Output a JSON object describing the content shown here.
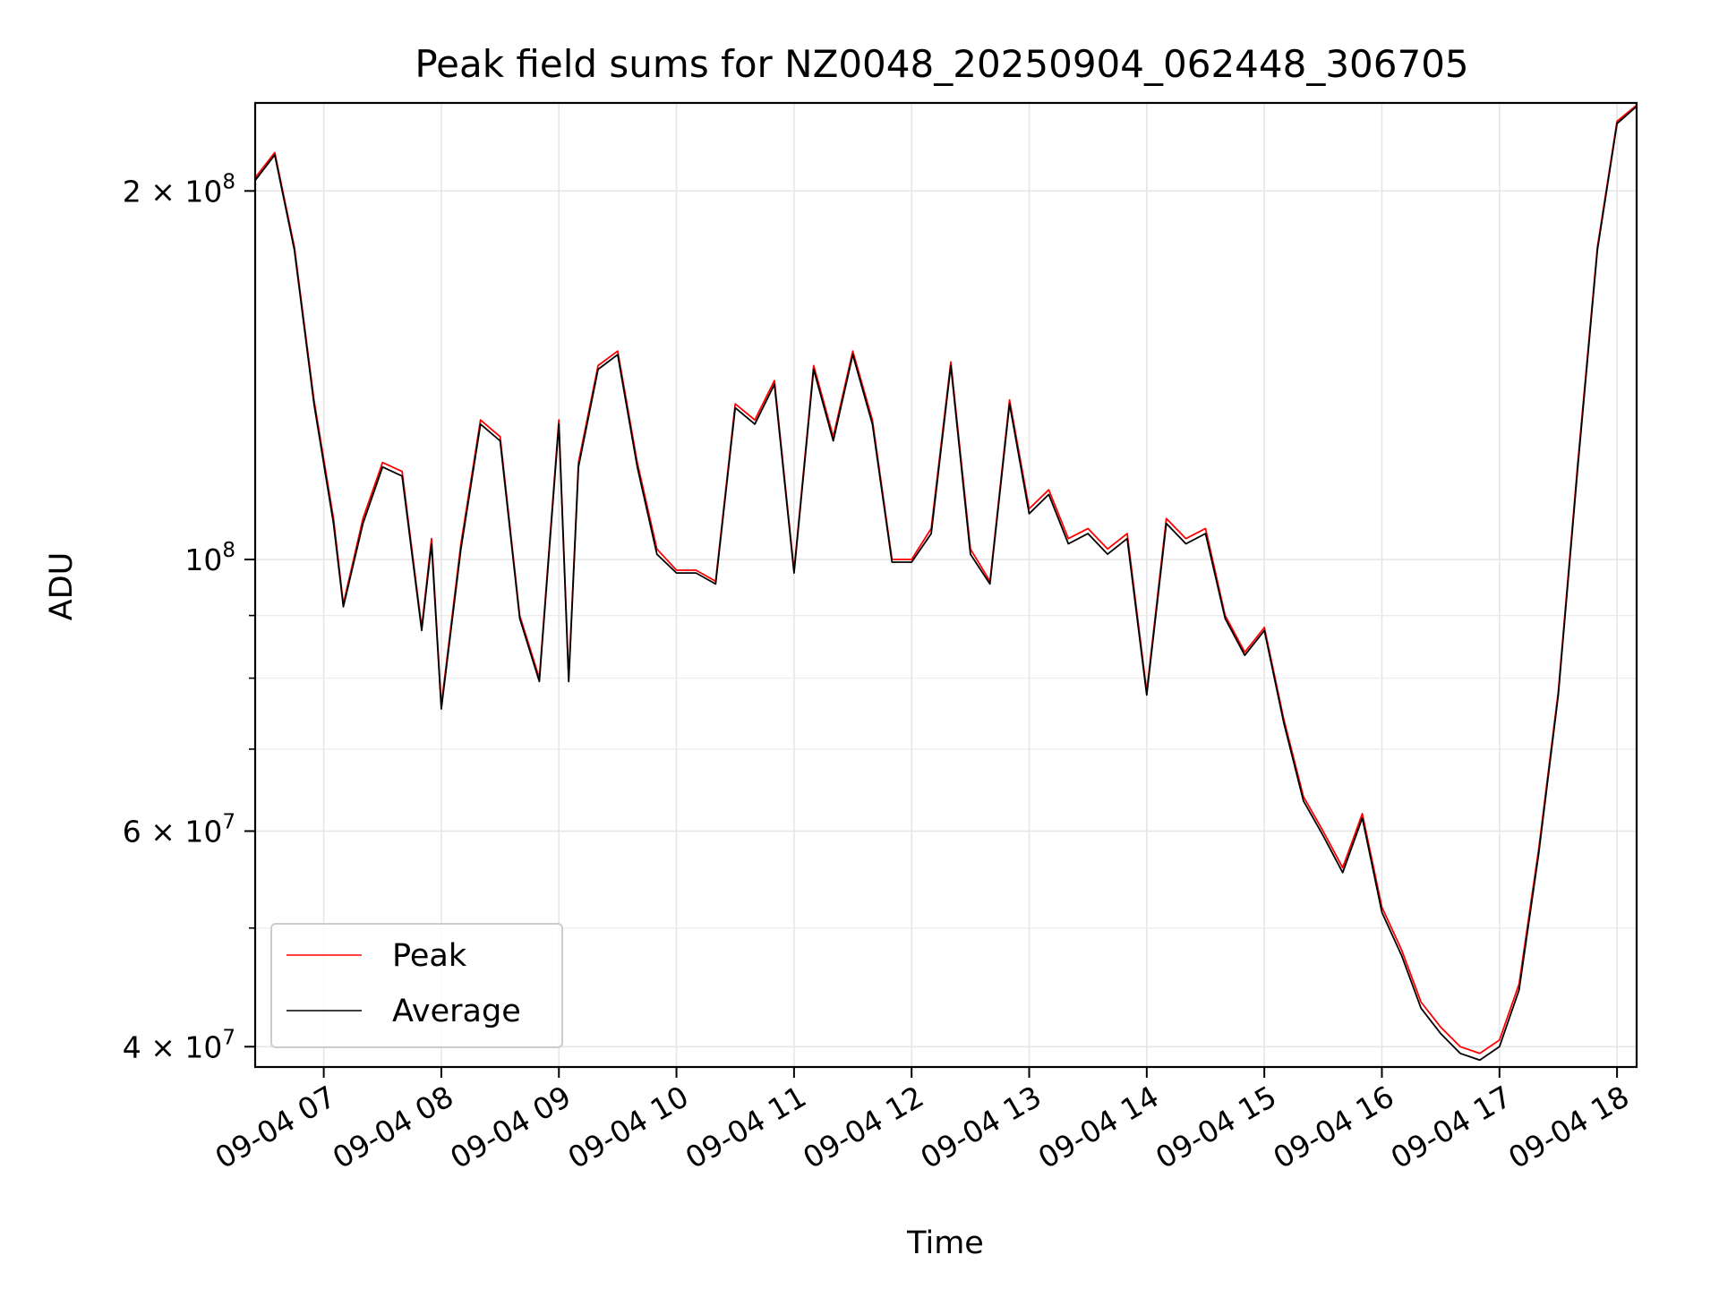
{
  "chart_data": {
    "type": "line",
    "title": "Peak field sums for NZ0048_20250904_062448_306705",
    "xlabel": "Time",
    "ylabel": "ADU",
    "yscale": "log",
    "xlim": [
      "09-04 06:25",
      "09-04 18:10"
    ],
    "ylim": [
      38500000,
      236000000
    ],
    "x_tick_labels": [
      "09-04 07",
      "09-04 08",
      "09-04 09",
      "09-04 10",
      "09-04 11",
      "09-04 12",
      "09-04 13",
      "09-04 14",
      "09-04 15",
      "09-04 16",
      "09-04 17",
      "09-04 18"
    ],
    "y_ticks": [
      {
        "value": 200000000,
        "base": "2 × 10",
        "exp": "8"
      },
      {
        "value": 100000000,
        "base": "10",
        "exp": "8"
      },
      {
        "value": 60000000,
        "base": "6 × 10",
        "exp": "7"
      },
      {
        "value": 40000000,
        "base": "4 × 10",
        "exp": "7"
      }
    ],
    "y_minor_ticks": [
      50000000,
      70000000,
      80000000,
      90000000
    ],
    "grid": true,
    "legend_position": "lower-left",
    "colors": {
      "peak": "#ff0000",
      "average": "#000000"
    },
    "x": [
      "06:25",
      "06:35",
      "06:45",
      "06:55",
      "07:05",
      "07:10",
      "07:20",
      "07:30",
      "07:40",
      "07:50",
      "07:55",
      "08:00",
      "08:10",
      "08:20",
      "08:30",
      "08:40",
      "08:50",
      "09:00",
      "09:05",
      "09:10",
      "09:20",
      "09:30",
      "09:40",
      "09:50",
      "10:00",
      "10:10",
      "10:20",
      "10:30",
      "10:40",
      "10:50",
      "11:00",
      "11:10",
      "11:20",
      "11:30",
      "11:40",
      "11:50",
      "12:00",
      "12:10",
      "12:20",
      "12:30",
      "12:40",
      "12:50",
      "13:00",
      "13:10",
      "13:20",
      "13:30",
      "13:40",
      "13:50",
      "14:00",
      "14:10",
      "14:20",
      "14:30",
      "14:40",
      "14:50",
      "15:00",
      "15:10",
      "15:20",
      "15:30",
      "15:40",
      "15:50",
      "16:00",
      "16:10",
      "16:20",
      "16:30",
      "16:40",
      "16:50",
      "17:00",
      "17:10",
      "17:20",
      "17:30",
      "17:40",
      "17:50",
      "18:00",
      "18:10"
    ],
    "series": [
      {
        "name": "Peak",
        "values": [
          205000000,
          215000000,
          180000000,
          135000000,
          108000000,
          92000000,
          108000000,
          120000000,
          118000000,
          88000000,
          104000000,
          76000000,
          103000000,
          130000000,
          126000000,
          90000000,
          80000000,
          130000000,
          80000000,
          120000000,
          144000000,
          148000000,
          120000000,
          102000000,
          98000000,
          98000000,
          96000000,
          134000000,
          130000000,
          140000000,
          98000000,
          144000000,
          126000000,
          148000000,
          130000000,
          100000000,
          100000000,
          106000000,
          145000000,
          102000000,
          96000000,
          135000000,
          110000000,
          114000000,
          104000000,
          106000000,
          102000000,
          105000000,
          78000000,
          108000000,
          104000000,
          106000000,
          90000000,
          84000000,
          88000000,
          74000000,
          64000000,
          60000000,
          56000000,
          62000000,
          52000000,
          48000000,
          43500000,
          41500000,
          40000000,
          39500000,
          40500000,
          45000000,
          58000000,
          78000000,
          120000000,
          180000000,
          228000000,
          235000000
        ]
      },
      {
        "name": "Average",
        "values": [
          204000000,
          214000000,
          179000000,
          134000000,
          107000000,
          91500000,
          107000000,
          119000000,
          117000000,
          87500000,
          103000000,
          75500000,
          102000000,
          129000000,
          125000000,
          89500000,
          79500000,
          129000000,
          79500000,
          119000000,
          143000000,
          147000000,
          119000000,
          101000000,
          97500000,
          97500000,
          95500000,
          133000000,
          129000000,
          139000000,
          97500000,
          143000000,
          125000000,
          147000000,
          129000000,
          99500000,
          99500000,
          105000000,
          144000000,
          101000000,
          95500000,
          134000000,
          109000000,
          113000000,
          103000000,
          105000000,
          101000000,
          104000000,
          77500000,
          107000000,
          103000000,
          105000000,
          89500000,
          83500000,
          87500000,
          73500000,
          63500000,
          59500000,
          55500000,
          61500000,
          51500000,
          47500000,
          43000000,
          41000000,
          39500000,
          39000000,
          40000000,
          44500000,
          57500000,
          77500000,
          119000000,
          179000000,
          227000000,
          234500000
        ]
      }
    ]
  }
}
